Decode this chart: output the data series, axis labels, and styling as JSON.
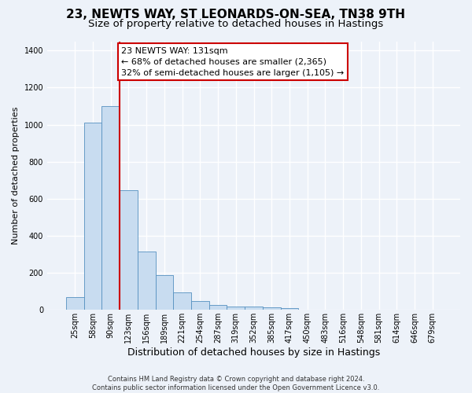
{
  "title": "23, NEWTS WAY, ST LEONARDS-ON-SEA, TN38 9TH",
  "subtitle": "Size of property relative to detached houses in Hastings",
  "xlabel": "Distribution of detached houses by size in Hastings",
  "ylabel": "Number of detached properties",
  "categories": [
    "25sqm",
    "58sqm",
    "90sqm",
    "123sqm",
    "156sqm",
    "189sqm",
    "221sqm",
    "254sqm",
    "287sqm",
    "319sqm",
    "352sqm",
    "385sqm",
    "417sqm",
    "450sqm",
    "483sqm",
    "516sqm",
    "548sqm",
    "581sqm",
    "614sqm",
    "646sqm",
    "679sqm"
  ],
  "values": [
    70,
    1010,
    1100,
    645,
    315,
    190,
    95,
    50,
    28,
    18,
    17,
    12,
    10,
    0,
    0,
    0,
    0,
    0,
    0,
    0,
    0
  ],
  "bar_color": "#c8dcf0",
  "bar_edge_color": "#5590c0",
  "vline_x_pos": 2.5,
  "annotation_text": "23 NEWTS WAY: 131sqm\n← 68% of detached houses are smaller (2,365)\n32% of semi-detached houses are larger (1,105) →",
  "annotation_box_facecolor": "#ffffff",
  "annotation_box_edgecolor": "#cc0000",
  "vline_color": "#cc0000",
  "ylim": [
    0,
    1450
  ],
  "yticks": [
    0,
    200,
    400,
    600,
    800,
    1000,
    1200,
    1400
  ],
  "background_color": "#edf2f9",
  "grid_color": "#ffffff",
  "footer_text": "Contains HM Land Registry data © Crown copyright and database right 2024.\nContains public sector information licensed under the Open Government Licence v3.0.",
  "title_fontsize": 11,
  "subtitle_fontsize": 9.5,
  "xlabel_fontsize": 9,
  "ylabel_fontsize": 8,
  "tick_fontsize": 7,
  "annotation_fontsize": 8,
  "footer_fontsize": 6
}
